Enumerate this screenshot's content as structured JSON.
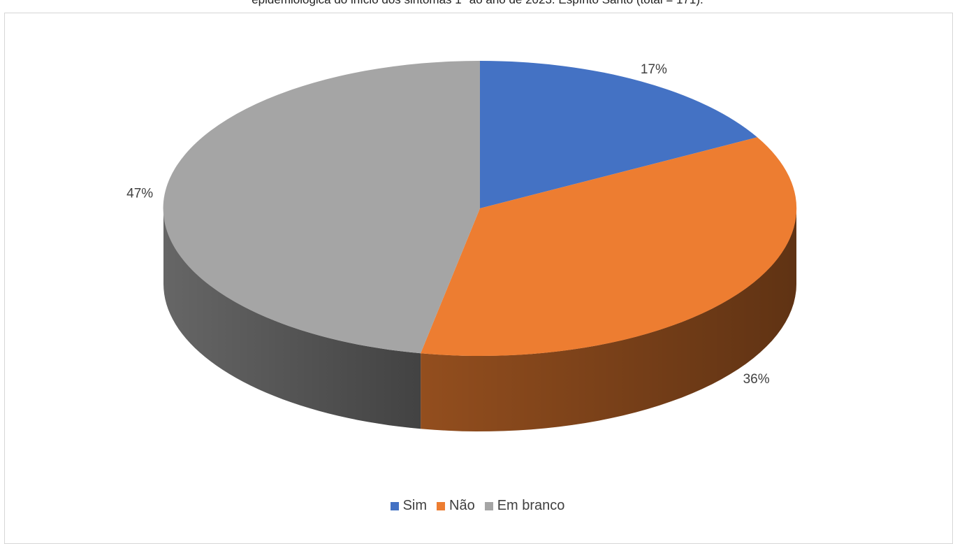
{
  "caption": "epidemiológica do início dos sintomas 1ª ao ano de 2023. Espírito Santo (total = 171).",
  "chart_data": {
    "type": "pie",
    "categories": [
      "Sim",
      "Não",
      "Em branco"
    ],
    "values": [
      17,
      36,
      47
    ],
    "labels": [
      "17%",
      "36%",
      "47%"
    ],
    "colors": [
      "#4472C4",
      "#ED7D31",
      "#A5A5A5"
    ],
    "style": "3d",
    "legend_position": "bottom"
  }
}
